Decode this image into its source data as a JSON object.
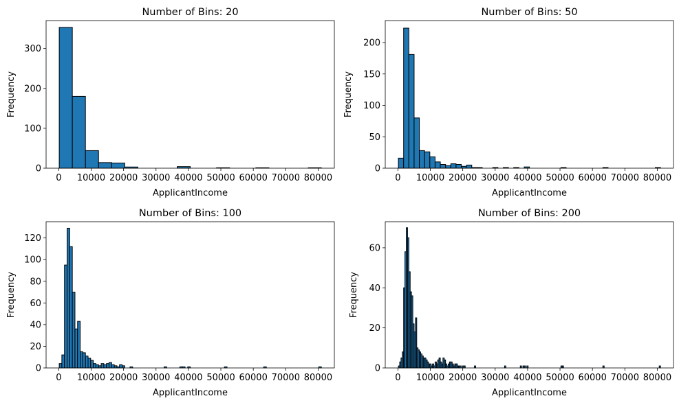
{
  "figure": {
    "title": ""
  },
  "chart_data": [
    {
      "type": "bar",
      "title": "Number of Bins: 20",
      "xlabel": "ApplicantIncome",
      "ylabel": "Frequency",
      "bins": 20,
      "bin_edges_range": [
        150,
        81000
      ],
      "xlim": [
        -3900,
        85000
      ],
      "ylim": [
        0,
        370
      ],
      "xticks": [
        0,
        10000,
        20000,
        30000,
        40000,
        50000,
        60000,
        70000,
        80000
      ],
      "yticks": [
        0,
        100,
        200,
        300
      ],
      "values": [
        353,
        180,
        44,
        14,
        13,
        3,
        0,
        0,
        0,
        4,
        0,
        0,
        1,
        0,
        0,
        1,
        0,
        0,
        0,
        1
      ],
      "color": "#1f77b4",
      "edgecolor": "#000000"
    },
    {
      "type": "bar",
      "title": "Number of Bins: 50",
      "xlabel": "ApplicantIncome",
      "ylabel": "Frequency",
      "bins": 50,
      "bin_edges_range": [
        150,
        81000
      ],
      "xlim": [
        -3900,
        85000
      ],
      "ylim": [
        0,
        235
      ],
      "xticks": [
        0,
        10000,
        20000,
        30000,
        40000,
        50000,
        60000,
        70000,
        80000
      ],
      "yticks": [
        0,
        50,
        100,
        150,
        200
      ],
      "values": [
        16,
        223,
        181,
        80,
        28,
        26,
        18,
        10,
        6,
        4,
        7,
        6,
        3,
        5,
        1,
        1,
        0,
        0,
        1,
        0,
        1,
        0,
        1,
        0,
        2,
        0,
        0,
        0,
        0,
        0,
        0,
        1,
        0,
        0,
        0,
        0,
        0,
        0,
        0,
        1,
        0,
        0,
        0,
        0,
        0,
        0,
        0,
        0,
        0,
        1
      ],
      "color": "#1f77b4",
      "edgecolor": "#000000"
    },
    {
      "type": "bar",
      "title": "Number of Bins: 100",
      "xlabel": "ApplicantIncome",
      "ylabel": "Frequency",
      "bins": 100,
      "bin_edges_range": [
        150,
        81000
      ],
      "xlim": [
        -3900,
        85000
      ],
      "ylim": [
        0,
        135
      ],
      "xticks": [
        0,
        10000,
        20000,
        30000,
        40000,
        50000,
        60000,
        70000,
        80000
      ],
      "yticks": [
        0,
        20,
        40,
        60,
        80,
        100,
        120
      ],
      "values": [
        4,
        12,
        95,
        129,
        112,
        70,
        36,
        43,
        15,
        14,
        11,
        9,
        7,
        4,
        3,
        2,
        4,
        3,
        4,
        5,
        3,
        2,
        1,
        3,
        2,
        0,
        0,
        1,
        0,
        0,
        0,
        0,
        0,
        0,
        0,
        0,
        0,
        0,
        0,
        0,
        1,
        0,
        0,
        0,
        0,
        0,
        1,
        1,
        0,
        1,
        0,
        0,
        0,
        0,
        0,
        0,
        0,
        0,
        0,
        0,
        0,
        0,
        0,
        1,
        0,
        0,
        0,
        0,
        0,
        0,
        0,
        0,
        0,
        0,
        0,
        0,
        0,
        0,
        1,
        0,
        0,
        0,
        0,
        0,
        0,
        0,
        0,
        0,
        0,
        0,
        0,
        0,
        0,
        0,
        0,
        0,
        0,
        0,
        0,
        1
      ],
      "color": "#1f77b4",
      "edgecolor": "#000000"
    },
    {
      "type": "bar",
      "title": "Number of Bins: 200",
      "xlabel": "ApplicantIncome",
      "ylabel": "Frequency",
      "bins": 200,
      "bin_edges_range": [
        150,
        81000
      ],
      "xlim": [
        -3900,
        85000
      ],
      "ylim": [
        0,
        73
      ],
      "xticks": [
        0,
        10000,
        20000,
        30000,
        40000,
        50000,
        60000,
        70000,
        80000
      ],
      "yticks": [
        0,
        20,
        40,
        60
      ],
      "values": [
        1,
        3,
        5,
        8,
        40,
        58,
        70,
        65,
        48,
        38,
        36,
        22,
        18,
        25,
        10,
        9,
        8,
        7,
        6,
        5,
        5,
        4,
        3,
        2,
        2,
        1,
        2,
        1,
        3,
        2,
        4,
        5,
        3,
        2,
        5,
        4,
        2,
        1,
        2,
        3,
        3,
        2,
        1,
        2,
        2,
        1,
        1,
        1,
        0,
        1,
        1,
        0,
        0,
        0,
        0,
        0,
        0,
        0,
        1,
        0,
        0,
        0,
        0,
        0,
        0,
        0,
        0,
        0,
        0,
        0,
        0,
        0,
        0,
        0,
        0,
        0,
        0,
        0,
        0,
        0,
        0,
        1,
        0,
        0,
        0,
        0,
        0,
        0,
        0,
        0,
        0,
        0,
        0,
        1,
        0,
        1,
        1,
        0,
        1,
        0,
        0,
        0,
        0,
        0,
        0,
        0,
        0,
        0,
        0,
        0,
        0,
        0,
        0,
        0,
        0,
        0,
        0,
        0,
        0,
        0,
        0,
        0,
        0,
        0,
        1,
        1,
        0,
        0,
        0,
        0,
        0,
        0,
        0,
        0,
        0,
        0,
        0,
        0,
        0,
        0,
        0,
        0,
        0,
        0,
        0,
        0,
        0,
        0,
        0,
        0,
        0,
        0,
        0,
        0,
        0,
        0,
        1,
        0,
        0,
        0,
        0,
        0,
        0,
        0,
        0,
        0,
        0,
        0,
        0,
        0,
        0,
        0,
        0,
        0,
        0,
        0,
        0,
        0,
        0,
        0,
        0,
        0,
        0,
        0,
        0,
        0,
        0,
        0,
        0,
        0,
        0,
        0,
        0,
        0,
        0,
        0,
        0,
        0,
        0,
        1
      ],
      "color": "#1f77b4",
      "edgecolor": "#000000"
    }
  ]
}
